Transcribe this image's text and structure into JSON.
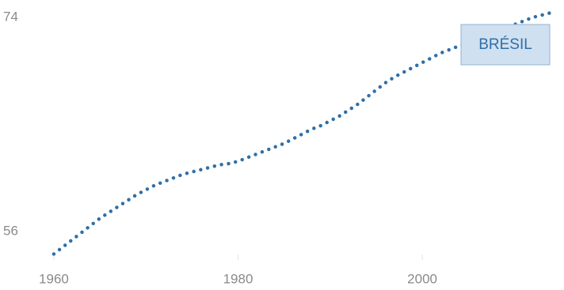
{
  "chart_data": {
    "type": "line",
    "x": [
      1960,
      1961,
      1962,
      1963,
      1964,
      1965,
      1966,
      1967,
      1968,
      1969,
      1970,
      1971,
      1972,
      1973,
      1974,
      1975,
      1976,
      1977,
      1978,
      1979,
      1980,
      1981,
      1982,
      1983,
      1984,
      1985,
      1986,
      1987,
      1988,
      1989,
      1990,
      1991,
      1992,
      1993,
      1994,
      1995,
      1996,
      1997,
      1998,
      1999,
      2000,
      2001,
      2002,
      2003,
      2004,
      2005,
      2006,
      2007,
      2008,
      2009,
      2010,
      2011,
      2012,
      2013,
      2014
    ],
    "series": [
      {
        "name": "BRÉSIL",
        "color": "#2f6fa7",
        "values": [
          54.1,
          54.7,
          55.3,
          55.9,
          56.5,
          57.1,
          57.6,
          58.1,
          58.6,
          59.1,
          59.5,
          59.9,
          60.2,
          60.5,
          60.8,
          61.0,
          61.2,
          61.4,
          61.6,
          61.7,
          61.9,
          62.2,
          62.5,
          62.8,
          63.1,
          63.4,
          63.8,
          64.2,
          64.6,
          64.9,
          65.3,
          65.7,
          66.2,
          66.7,
          67.3,
          67.9,
          68.5,
          69.0,
          69.4,
          69.8,
          70.2,
          70.6,
          71.0,
          71.3,
          71.6,
          71.9,
          72.2,
          72.5,
          72.8,
          73.1,
          73.4,
          73.7,
          74.0,
          74.2,
          74.4
        ]
      }
    ],
    "xlim": [
      1958,
      2015
    ],
    "xticks": [
      1960,
      1980,
      2000
    ],
    "ylim": [
      53,
      75
    ],
    "yticks": [
      56,
      74
    ]
  }
}
